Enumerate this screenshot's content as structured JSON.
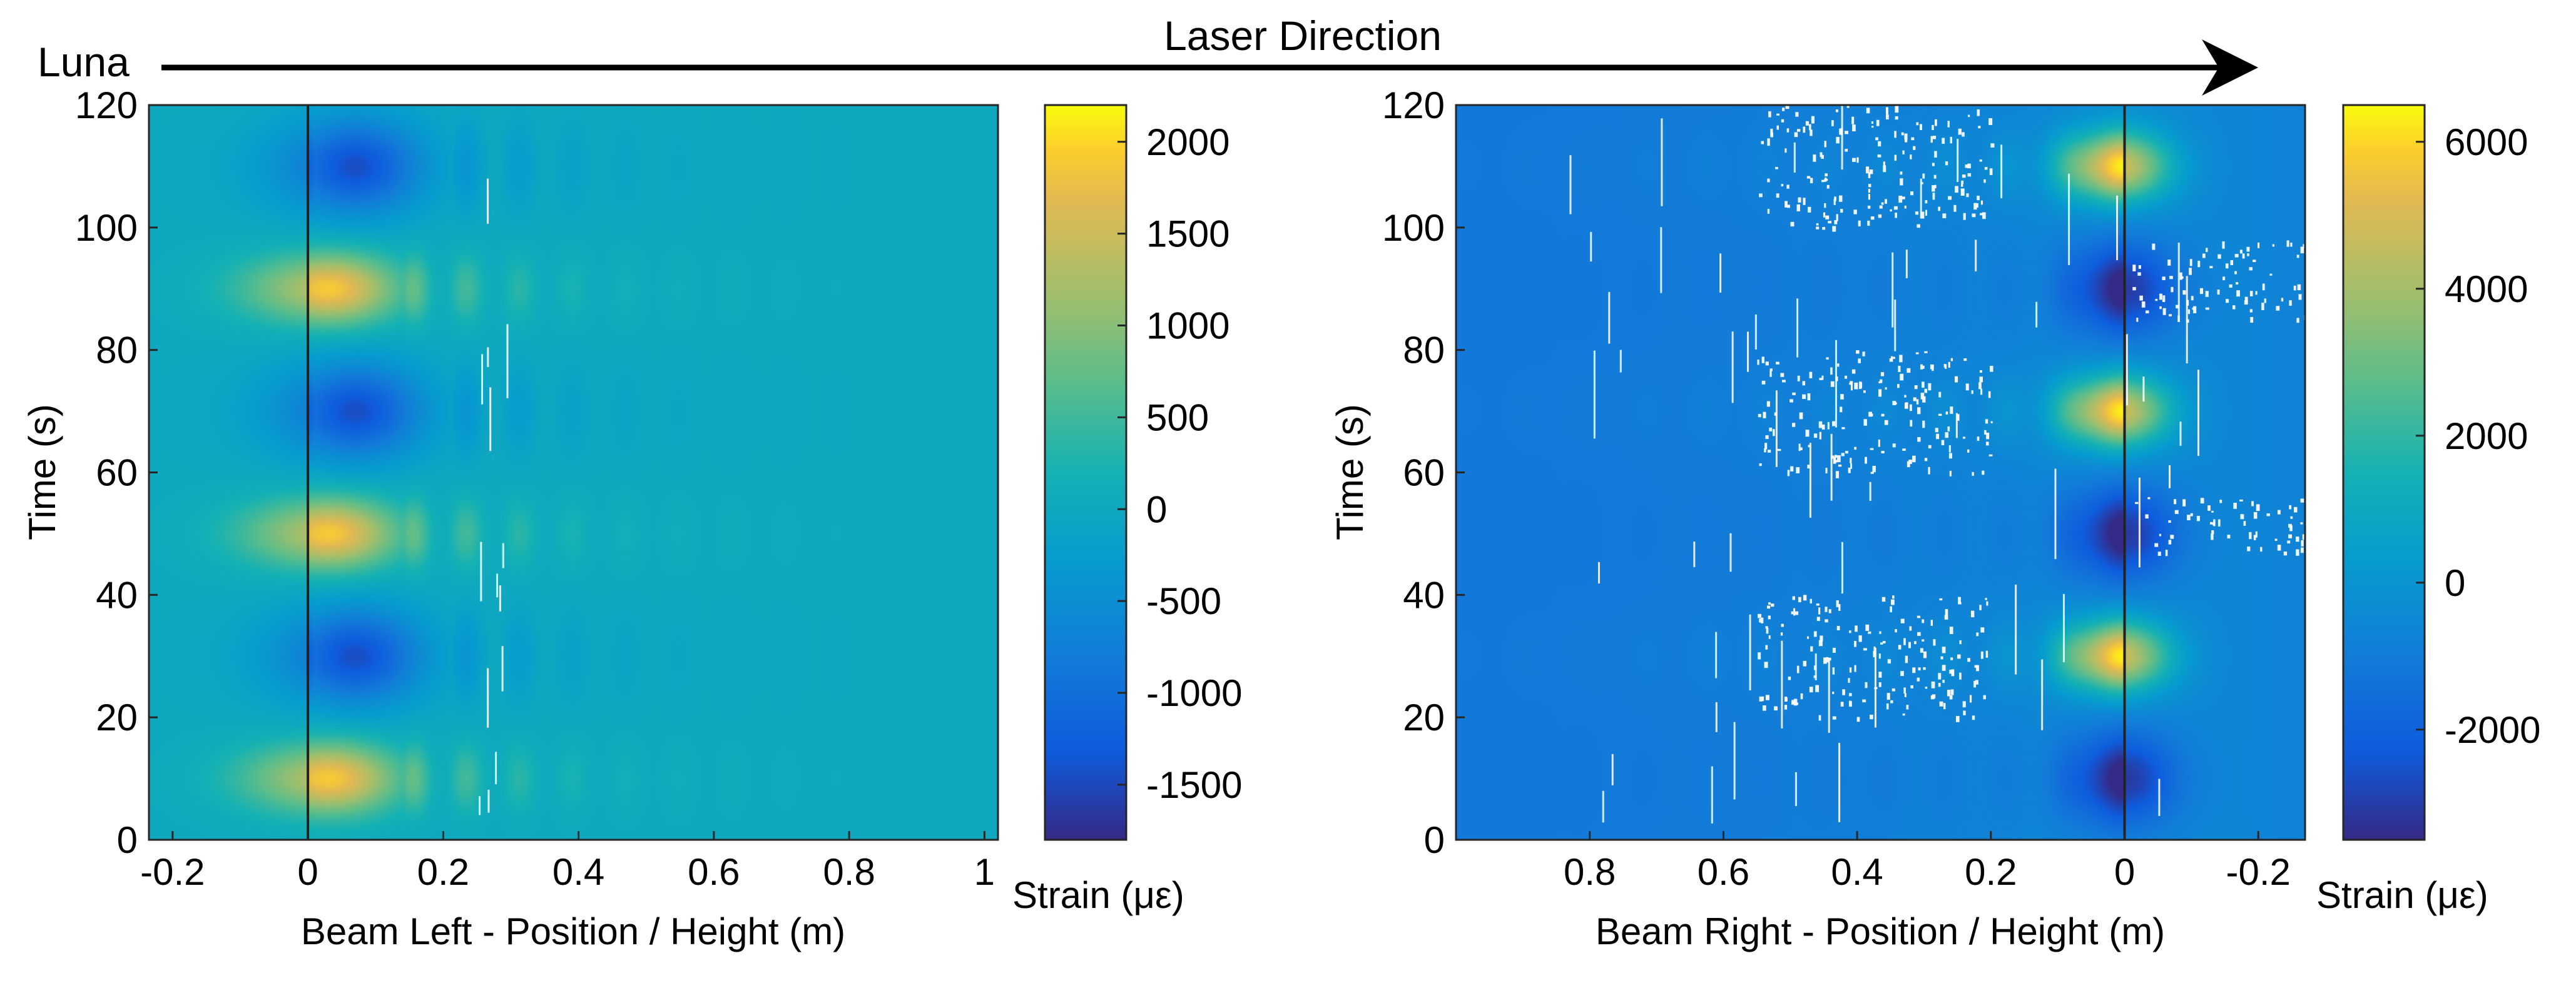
{
  "header": {
    "source_label": "Luna",
    "direction_label": "Laser Direction"
  },
  "chart_data": [
    {
      "type": "heatmap",
      "name": "Beam Left",
      "xlabel": "Beam Left - Position / Height (m)",
      "ylabel": "Time (s)",
      "xlim": [
        -0.235,
        1.02
      ],
      "ylim": [
        0,
        120
      ],
      "x_reversed": false,
      "x_ticks": [
        -0.2,
        0,
        0.2,
        0.4,
        0.6,
        0.8,
        1
      ],
      "x_tick_labels": [
        "-0.2",
        "0",
        "0.2",
        "0.4",
        "0.6",
        "0.8",
        "1"
      ],
      "y_ticks": [
        0,
        20,
        40,
        60,
        80,
        100,
        120
      ],
      "y_tick_labels": [
        "0",
        "20",
        "40",
        "60",
        "80",
        "100",
        "120"
      ],
      "reference_line_x": 0,
      "colorbar": {
        "label": "Strain (με)",
        "range": [
          -1800,
          2200
        ],
        "ticks": [
          2000,
          1500,
          1000,
          500,
          0,
          -500,
          -1000,
          -1500
        ],
        "tick_labels": [
          "2000",
          "1500",
          "1000",
          "500",
          "0",
          "-500",
          "-1000",
          "-1500"
        ]
      },
      "field": {
        "baseline": 0,
        "events": [
          {
            "t": 10,
            "peak": 1900,
            "kind": "tension"
          },
          {
            "t": 30,
            "peak": -1450,
            "kind": "compression"
          },
          {
            "t": 50,
            "peak": 1900,
            "kind": "tension"
          },
          {
            "t": 70,
            "peak": -1450,
            "kind": "compression"
          },
          {
            "t": 90,
            "peak": 1900,
            "kind": "tension"
          },
          {
            "t": 110,
            "peak": -1450,
            "kind": "compression"
          }
        ],
        "tension_center_x": 0.03,
        "compression_center_x": 0.07,
        "decay_extent_m": 0.9
      },
      "noise": []
    },
    {
      "type": "heatmap",
      "name": "Beam Right",
      "xlabel": "Beam Right - Position / Height (m)",
      "ylabel": "Time (s)",
      "xlim": [
        1.0,
        -0.27
      ],
      "ylim": [
        0,
        120
      ],
      "x_reversed": true,
      "x_ticks": [
        0.8,
        0.6,
        0.4,
        0.2,
        0,
        -0.2
      ],
      "x_tick_labels": [
        "0.8",
        "0.6",
        "0.4",
        "0.2",
        "0",
        "-0.2"
      ],
      "y_ticks": [
        0,
        20,
        40,
        60,
        80,
        100,
        120
      ],
      "y_tick_labels": [
        "0",
        "20",
        "40",
        "60",
        "80",
        "100",
        "120"
      ],
      "reference_line_x": 0,
      "colorbar": {
        "label": "Strain (με)",
        "range": [
          -3500,
          6500
        ],
        "ticks": [
          6000,
          4000,
          2000,
          0,
          -2000
        ],
        "tick_labels": [
          "6000",
          "4000",
          "2000",
          "0",
          "-2000"
        ]
      },
      "field": {
        "baseline": 0,
        "events": [
          {
            "t": 10,
            "peak": -3000,
            "kind": "compression"
          },
          {
            "t": 30,
            "peak": 5800,
            "kind": "tension"
          },
          {
            "t": 50,
            "peak": -3000,
            "kind": "compression"
          },
          {
            "t": 70,
            "peak": 5800,
            "kind": "tension"
          },
          {
            "t": 90,
            "peak": -3000,
            "kind": "compression"
          },
          {
            "t": 110,
            "peak": 5800,
            "kind": "tension"
          }
        ],
        "tension_center_x": 0.01,
        "compression_center_x": 0.0,
        "decay_extent_m": 0.6
      },
      "noise": [
        {
          "x_from": -0.01,
          "x_to": -0.27,
          "t_from": 85,
          "t_to": 98
        },
        {
          "x_from": -0.01,
          "x_to": -0.27,
          "t_from": 47,
          "t_to": 56
        },
        {
          "x_from": 0.55,
          "x_to": 0.2,
          "t_from": 100,
          "t_to": 120
        },
        {
          "x_from": 0.55,
          "x_to": 0.2,
          "t_from": 60,
          "t_to": 80
        },
        {
          "x_from": 0.55,
          "x_to": 0.2,
          "t_from": 20,
          "t_to": 40
        }
      ]
    }
  ]
}
